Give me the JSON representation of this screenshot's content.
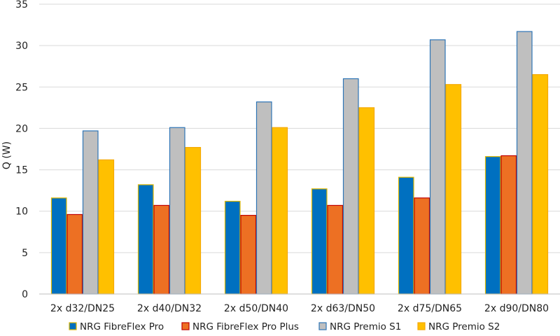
{
  "chart_data": {
    "type": "bar",
    "title": "",
    "xlabel": "",
    "ylabel": "Q (W)",
    "ylim": [
      0,
      35
    ],
    "yticks": [
      0,
      5,
      10,
      15,
      20,
      25,
      30,
      35
    ],
    "grid": true,
    "legend_position": "bottom",
    "categories": [
      "2x d32/DN25",
      "2x d40/DN32",
      "2x d50/DN40",
      "2x d63/DN50",
      "2x d75/DN65",
      "2x d90/DN80"
    ],
    "series": [
      {
        "name": "NRG FibreFlex Pro",
        "color": "#0070c0",
        "border": "#e0b800",
        "values": [
          11.6,
          13.2,
          11.2,
          12.7,
          14.1,
          16.6
        ]
      },
      {
        "name": "NRG FibreFlex Pro Plus",
        "color": "#ed7023",
        "border": "#c00000",
        "values": [
          9.6,
          10.7,
          9.5,
          10.7,
          11.6,
          16.7
        ]
      },
      {
        "name": "NRG Premio S1",
        "color": "#bfbfbf",
        "border": "#2e75b6",
        "values": [
          19.7,
          20.1,
          23.2,
          26.0,
          30.7,
          31.7
        ]
      },
      {
        "name": "NRG Premio S2",
        "color": "#ffc000",
        "border": "#f5a800",
        "values": [
          16.2,
          17.7,
          20.1,
          22.5,
          25.3,
          26.5
        ]
      }
    ]
  }
}
